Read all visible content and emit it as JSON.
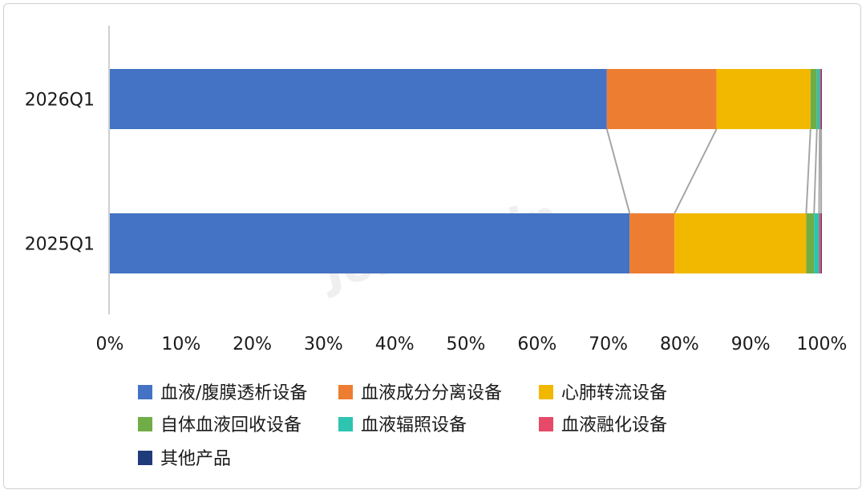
{
  "chart_data": {
    "type": "bar",
    "orientation": "horizontal",
    "stacked": "percent",
    "categories": [
      "2026Q1",
      "2025Q1"
    ],
    "series": [
      {
        "name": "血液/腹膜透析设备",
        "color": "#4472c4",
        "values": [
          69.8,
          73.0
        ]
      },
      {
        "name": "血液成分分离设备",
        "color": "#ed7d31",
        "values": [
          15.4,
          6.3
        ]
      },
      {
        "name": "心肺转流设备",
        "color": "#f2b800",
        "values": [
          13.2,
          18.5
        ]
      },
      {
        "name": "自体血液回收设备",
        "color": "#70ad47",
        "values": [
          0.9,
          1.1
        ]
      },
      {
        "name": "血液辐照设备",
        "color": "#2ec4b0",
        "values": [
          0.4,
          0.7
        ]
      },
      {
        "name": "血液融化设备",
        "color": "#e64a68",
        "values": [
          0.2,
          0.3
        ]
      },
      {
        "name": "其他产品",
        "color": "#1f3b7a",
        "values": [
          0.1,
          0.1
        ]
      }
    ],
    "xlim": [
      0,
      100
    ],
    "x_ticks": [
      "0%",
      "10%",
      "20%",
      "30%",
      "40%",
      "50%",
      "60%",
      "70%",
      "80%",
      "90%",
      "100%"
    ],
    "series_lines": true,
    "legend_position": "bottom",
    "watermark": "Joinchain",
    "grid": false
  }
}
